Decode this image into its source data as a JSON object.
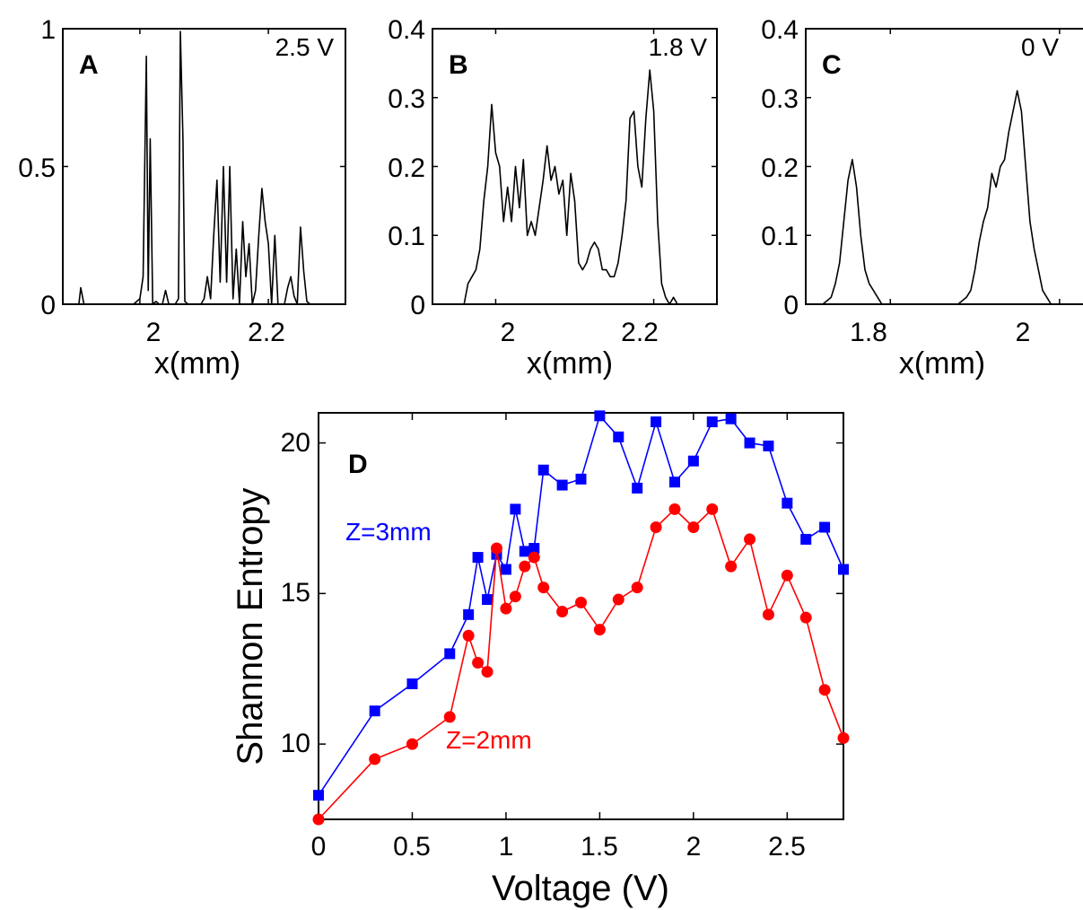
{
  "chart_data": [
    {
      "panel": "A",
      "type": "line",
      "annotation": "2.5 V",
      "xlabel": "x(mm)",
      "xlim": [
        1.88,
        2.32
      ],
      "ylim": [
        0,
        1
      ],
      "xticks": [
        "2",
        "2.2"
      ],
      "yticks": [
        "0",
        "0.5",
        "1"
      ],
      "color": "#000000",
      "x": [
        1.88,
        1.905,
        1.908,
        1.913,
        1.93,
        1.99,
        2.0,
        2.005,
        2.01,
        2.013,
        2.016,
        2.02,
        2.025,
        2.03,
        2.035,
        2.04,
        2.045,
        2.05,
        2.055,
        2.06,
        2.063,
        2.067,
        2.07,
        2.075,
        2.08,
        2.085,
        2.09,
        2.095,
        2.1,
        2.105,
        2.11,
        2.115,
        2.12,
        2.125,
        2.13,
        2.135,
        2.14,
        2.145,
        2.15,
        2.155,
        2.16,
        2.165,
        2.17,
        2.175,
        2.18,
        2.185,
        2.19,
        2.195,
        2.2,
        2.205,
        2.21,
        2.215,
        2.22,
        2.225,
        2.23,
        2.235,
        2.24,
        2.245,
        2.25,
        2.255,
        2.26,
        2.265,
        2.27,
        2.275,
        2.28,
        2.285,
        2.29,
        2.295,
        2.3,
        2.32
      ],
      "y": [
        0,
        0,
        0.06,
        0,
        0,
        0,
        0.02,
        0.1,
        0.9,
        0.05,
        0.6,
        0,
        0.01,
        0,
        0,
        0.05,
        0,
        0,
        0,
        0.02,
        0.99,
        0.6,
        0.01,
        0,
        0,
        0,
        0,
        0,
        0.02,
        0.1,
        0.02,
        0.25,
        0.45,
        0.08,
        0.5,
        0.08,
        0.5,
        0.02,
        0.2,
        0,
        0.3,
        0.1,
        0.22,
        0,
        0.05,
        0.25,
        0.42,
        0.3,
        0.22,
        0,
        0.25,
        0,
        0,
        0,
        0.06,
        0.1,
        0.03,
        0,
        0.28,
        0.12,
        0.01,
        0,
        0,
        0,
        0,
        0,
        0,
        0,
        0,
        0
      ]
    },
    {
      "panel": "B",
      "type": "line",
      "annotation": "1.8 V",
      "xlabel": "x(mm)",
      "xlim": [
        1.92,
        2.28
      ],
      "ylim": [
        0,
        0.4
      ],
      "xticks": [
        "2",
        "2.2"
      ],
      "yticks": [
        "0",
        "0.1",
        "0.2",
        "0.3",
        "0.4"
      ],
      "color": "#000000",
      "x": [
        1.96,
        1.965,
        1.97,
        1.975,
        1.98,
        1.985,
        1.99,
        1.995,
        2.0,
        2.005,
        2.01,
        2.015,
        2.02,
        2.025,
        2.03,
        2.035,
        2.04,
        2.045,
        2.05,
        2.055,
        2.06,
        2.065,
        2.07,
        2.075,
        2.08,
        2.085,
        2.09,
        2.095,
        2.1,
        2.105,
        2.11,
        2.115,
        2.12,
        2.125,
        2.13,
        2.135,
        2.14,
        2.145,
        2.15,
        2.155,
        2.16,
        2.165,
        2.17,
        2.175,
        2.18,
        2.185,
        2.19,
        2.195,
        2.2,
        2.205,
        2.21,
        2.215,
        2.22,
        2.225,
        2.23,
        2.235,
        2.24
      ],
      "y": [
        0,
        0.03,
        0.04,
        0.05,
        0.08,
        0.15,
        0.2,
        0.29,
        0.22,
        0.2,
        0.12,
        0.17,
        0.12,
        0.2,
        0.14,
        0.21,
        0.1,
        0.12,
        0.1,
        0.14,
        0.18,
        0.23,
        0.18,
        0.2,
        0.16,
        0.18,
        0.1,
        0.19,
        0.15,
        0.06,
        0.05,
        0.06,
        0.08,
        0.09,
        0.08,
        0.05,
        0.05,
        0.04,
        0.04,
        0.06,
        0.1,
        0.15,
        0.27,
        0.28,
        0.2,
        0.17,
        0.27,
        0.34,
        0.28,
        0.12,
        0.03,
        0.01,
        0,
        0.01,
        0,
        0,
        0
      ]
    },
    {
      "panel": "C",
      "type": "line",
      "annotation": "0 V",
      "xlabel": "x(mm)",
      "xlim": [
        1.7,
        2.05
      ],
      "ylim": [
        0,
        0.4
      ],
      "xticks": [
        "1.8",
        "2"
      ],
      "yticks": [
        "0",
        "0.1",
        "0.2",
        "0.3",
        "0.4"
      ],
      "color": "#000000",
      "x": [
        1.72,
        1.725,
        1.73,
        1.735,
        1.74,
        1.745,
        1.75,
        1.755,
        1.76,
        1.765,
        1.77,
        1.775,
        1.78,
        1.785,
        1.79,
        1.8,
        1.85,
        1.88,
        1.89,
        1.895,
        1.9,
        1.905,
        1.91,
        1.915,
        1.92,
        1.925,
        1.93,
        1.935,
        1.94,
        1.945,
        1.95,
        1.955,
        1.96,
        1.965,
        1.97,
        1.975,
        1.98,
        1.985,
        1.99,
        2.0,
        2.05
      ],
      "y": [
        0,
        0.005,
        0.01,
        0.03,
        0.06,
        0.12,
        0.18,
        0.21,
        0.17,
        0.1,
        0.05,
        0.03,
        0.02,
        0.01,
        0,
        0,
        0,
        0,
        0.01,
        0.02,
        0.05,
        0.09,
        0.12,
        0.14,
        0.19,
        0.17,
        0.2,
        0.21,
        0.25,
        0.28,
        0.31,
        0.28,
        0.2,
        0.12,
        0.08,
        0.05,
        0.02,
        0.01,
        0,
        0,
        0
      ]
    },
    {
      "panel": "D",
      "type": "line",
      "xlabel": "Voltage (V)",
      "ylabel": "Shannon Entropy",
      "xlim": [
        0,
        2.8
      ],
      "ylim": [
        7.5,
        21
      ],
      "xticks": [
        "0",
        "0.5",
        "1",
        "1.5",
        "2",
        "2.5"
      ],
      "yticks": [
        "10",
        "15",
        "20"
      ],
      "series": [
        {
          "name": "Z=3mm",
          "color": "#0000ff",
          "marker": "square",
          "x": [
            0,
            0.3,
            0.5,
            0.7,
            0.8,
            0.85,
            0.9,
            0.95,
            1.0,
            1.05,
            1.1,
            1.15,
            1.2,
            1.3,
            1.4,
            1.5,
            1.6,
            1.7,
            1.8,
            1.9,
            2.0,
            2.1,
            2.2,
            2.3,
            2.4,
            2.5,
            2.6,
            2.7,
            2.8
          ],
          "y": [
            8.3,
            11.1,
            12.0,
            13.0,
            14.3,
            16.2,
            14.8,
            16.3,
            15.8,
            17.8,
            16.4,
            16.5,
            19.1,
            18.6,
            18.8,
            20.9,
            20.2,
            18.5,
            20.7,
            18.7,
            19.4,
            20.7,
            20.8,
            20.0,
            19.9,
            18.0,
            16.8,
            17.2,
            15.8
          ]
        },
        {
          "name": "Z=2mm",
          "color": "#ff0000",
          "marker": "circle",
          "x": [
            0,
            0.3,
            0.5,
            0.7,
            0.8,
            0.85,
            0.9,
            0.95,
            1.0,
            1.05,
            1.1,
            1.15,
            1.2,
            1.3,
            1.4,
            1.5,
            1.6,
            1.7,
            1.8,
            1.9,
            2.0,
            2.1,
            2.2,
            2.3,
            2.4,
            2.5,
            2.6,
            2.7,
            2.8
          ],
          "y": [
            7.5,
            9.5,
            10.0,
            10.9,
            13.6,
            12.7,
            12.4,
            16.5,
            14.5,
            14.9,
            15.9,
            16.2,
            15.2,
            14.4,
            14.7,
            13.8,
            14.8,
            15.2,
            17.2,
            17.8,
            17.2,
            17.8,
            15.9,
            16.8,
            14.3,
            15.6,
            14.2,
            11.8,
            10.2
          ]
        }
      ]
    }
  ]
}
